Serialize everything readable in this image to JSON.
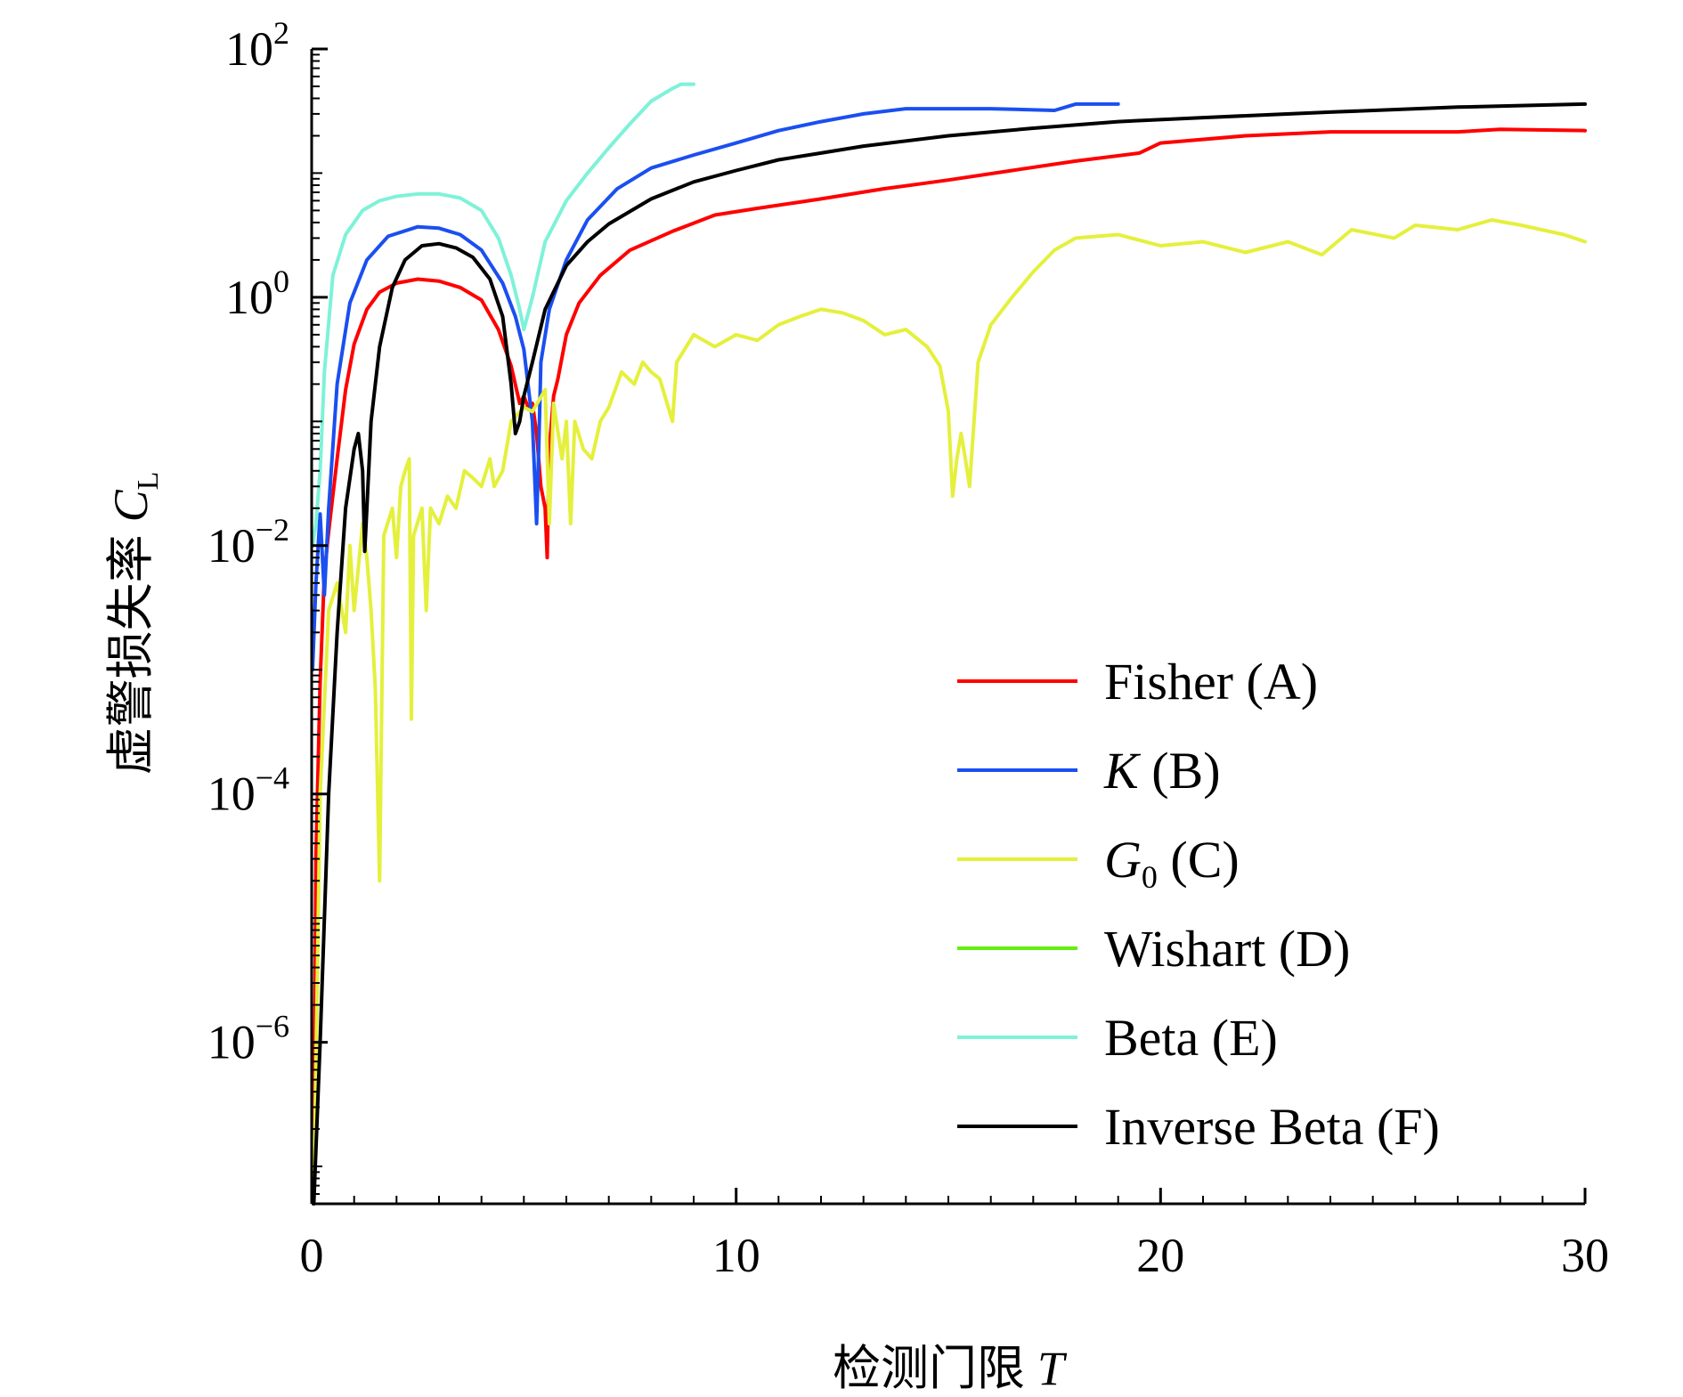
{
  "chart_data": {
    "type": "line",
    "xlabel": "检测门限",
    "xlabel_symbol": "T",
    "ylabel": "虚警损失率",
    "ylabel_symbol": "C",
    "ylabel_subscript": "L",
    "x_scale": "linear",
    "y_scale": "log",
    "xlim": [
      0,
      30
    ],
    "ylim": [
      5e-08,
      100
    ],
    "x_ticks": [
      0,
      10,
      20,
      30
    ],
    "x_tick_labels": [
      "0",
      "10",
      "20",
      "30"
    ],
    "y_ticks": [
      1e-06,
      0.0001,
      0.01,
      1,
      100
    ],
    "y_tick_labels": [
      {
        "base": "10",
        "exp": "−6"
      },
      {
        "base": "10",
        "exp": "−4"
      },
      {
        "base": "10",
        "exp": "−2"
      },
      {
        "base": "10",
        "exp": "0"
      },
      {
        "base": "10",
        "exp": "2"
      }
    ],
    "grid": false,
    "legend_position": "lower-right",
    "series": [
      {
        "name": "Fisher (A)",
        "name_style": "plain",
        "color": "#ff0000",
        "points": [
          [
            0.05,
            5e-08
          ],
          [
            0.1,
            3e-05
          ],
          [
            0.2,
            0.0008
          ],
          [
            0.3,
            0.006
          ],
          [
            0.4,
            0.013
          ],
          [
            0.6,
            0.05
          ],
          [
            0.8,
            0.18
          ],
          [
            1.0,
            0.42
          ],
          [
            1.3,
            0.8
          ],
          [
            1.6,
            1.1
          ],
          [
            2.0,
            1.3
          ],
          [
            2.5,
            1.4
          ],
          [
            3.0,
            1.35
          ],
          [
            3.5,
            1.2
          ],
          [
            4.0,
            0.95
          ],
          [
            4.4,
            0.55
          ],
          [
            4.7,
            0.28
          ],
          [
            4.9,
            0.14
          ],
          [
            5.0,
            0.16
          ],
          [
            5.1,
            0.13
          ],
          [
            5.2,
            0.14
          ],
          [
            5.3,
            0.08
          ],
          [
            5.4,
            0.03
          ],
          [
            5.5,
            0.02
          ],
          [
            5.55,
            0.008
          ],
          [
            5.6,
            0.06
          ],
          [
            5.7,
            0.16
          ],
          [
            5.8,
            0.22
          ],
          [
            6.0,
            0.5
          ],
          [
            6.3,
            0.9
          ],
          [
            6.8,
            1.5
          ],
          [
            7.5,
            2.4
          ],
          [
            8.5,
            3.4
          ],
          [
            9.5,
            4.6
          ],
          [
            10.5,
            5.2
          ],
          [
            12,
            6.2
          ],
          [
            13.5,
            7.5
          ],
          [
            15,
            8.8
          ],
          [
            16.5,
            10.5
          ],
          [
            18,
            12.5
          ],
          [
            19.5,
            14.5
          ],
          [
            20,
            17.5
          ],
          [
            22,
            20
          ],
          [
            24,
            21.5
          ],
          [
            27,
            21.5
          ],
          [
            28,
            22.5
          ],
          [
            30,
            22
          ]
        ]
      },
      {
        "name": "K (B)",
        "name_style": "italic-symbol",
        "color": "#1a4ff0",
        "points": [
          [
            0.02,
            0.001
          ],
          [
            0.1,
            0.005
          ],
          [
            0.2,
            0.018
          ],
          [
            0.3,
            0.004
          ],
          [
            0.4,
            0.02
          ],
          [
            0.6,
            0.2
          ],
          [
            0.9,
            0.9
          ],
          [
            1.3,
            2.0
          ],
          [
            1.8,
            3.1
          ],
          [
            2.5,
            3.7
          ],
          [
            3.0,
            3.6
          ],
          [
            3.5,
            3.2
          ],
          [
            4.0,
            2.4
          ],
          [
            4.5,
            1.3
          ],
          [
            4.8,
            0.7
          ],
          [
            5.0,
            0.38
          ],
          [
            5.2,
            0.1
          ],
          [
            5.3,
            0.015
          ],
          [
            5.35,
            0.06
          ],
          [
            5.4,
            0.3
          ],
          [
            5.6,
            0.8
          ],
          [
            6.0,
            2.0
          ],
          [
            6.5,
            4.2
          ],
          [
            7.2,
            7.5
          ],
          [
            8.0,
            11
          ],
          [
            9.0,
            14
          ],
          [
            10,
            17.5
          ],
          [
            11,
            22
          ],
          [
            12,
            26
          ],
          [
            13,
            30
          ],
          [
            14,
            33
          ],
          [
            16,
            33
          ],
          [
            17.5,
            32
          ],
          [
            18,
            36
          ],
          [
            19,
            36
          ]
        ]
      },
      {
        "name": "G0 (C)",
        "name_style": "italic-subscript",
        "color": "#e4f03c",
        "points": [
          [
            0.05,
            5e-08
          ],
          [
            0.2,
            0.0001
          ],
          [
            0.4,
            0.003
          ],
          [
            0.6,
            0.005
          ],
          [
            0.8,
            0.002
          ],
          [
            0.9,
            0.01
          ],
          [
            1.0,
            0.003
          ],
          [
            1.2,
            0.015
          ],
          [
            1.3,
            0.008
          ],
          [
            1.4,
            0.003
          ],
          [
            1.5,
            0.0007
          ],
          [
            1.6,
            2e-05
          ],
          [
            1.7,
            0.012
          ],
          [
            1.9,
            0.02
          ],
          [
            2.0,
            0.008
          ],
          [
            2.1,
            0.03
          ],
          [
            2.2,
            0.04
          ],
          [
            2.3,
            0.05
          ],
          [
            2.35,
            0.0004
          ],
          [
            2.4,
            0.012
          ],
          [
            2.6,
            0.02
          ],
          [
            2.7,
            0.003
          ],
          [
            2.8,
            0.02
          ],
          [
            3.0,
            0.015
          ],
          [
            3.2,
            0.025
          ],
          [
            3.4,
            0.02
          ],
          [
            3.6,
            0.04
          ],
          [
            3.8,
            0.035
          ],
          [
            4.0,
            0.03
          ],
          [
            4.2,
            0.05
          ],
          [
            4.3,
            0.03
          ],
          [
            4.5,
            0.04
          ],
          [
            4.7,
            0.1
          ],
          [
            5.0,
            0.13
          ],
          [
            5.2,
            0.12
          ],
          [
            5.5,
            0.18
          ],
          [
            5.6,
            0.015
          ],
          [
            5.7,
            0.14
          ],
          [
            5.9,
            0.05
          ],
          [
            6.0,
            0.1
          ],
          [
            6.1,
            0.015
          ],
          [
            6.2,
            0.1
          ],
          [
            6.4,
            0.06
          ],
          [
            6.6,
            0.05
          ],
          [
            6.8,
            0.1
          ],
          [
            7.0,
            0.13
          ],
          [
            7.3,
            0.25
          ],
          [
            7.6,
            0.2
          ],
          [
            7.8,
            0.3
          ],
          [
            8.0,
            0.25
          ],
          [
            8.2,
            0.22
          ],
          [
            8.5,
            0.1
          ],
          [
            8.6,
            0.3
          ],
          [
            9.0,
            0.5
          ],
          [
            9.5,
            0.4
          ],
          [
            10,
            0.5
          ],
          [
            10.5,
            0.45
          ],
          [
            11,
            0.6
          ],
          [
            11.5,
            0.7
          ],
          [
            12,
            0.8
          ],
          [
            12.5,
            0.75
          ],
          [
            13,
            0.65
          ],
          [
            13.5,
            0.5
          ],
          [
            14,
            0.55
          ],
          [
            14.5,
            0.4
          ],
          [
            14.8,
            0.28
          ],
          [
            15.0,
            0.12
          ],
          [
            15.1,
            0.025
          ],
          [
            15.2,
            0.05
          ],
          [
            15.3,
            0.08
          ],
          [
            15.4,
            0.05
          ],
          [
            15.5,
            0.03
          ],
          [
            15.7,
            0.3
          ],
          [
            16,
            0.6
          ],
          [
            16.5,
            1.0
          ],
          [
            17,
            1.6
          ],
          [
            17.5,
            2.4
          ],
          [
            18,
            3.0
          ],
          [
            19,
            3.2
          ],
          [
            20,
            2.6
          ],
          [
            21,
            2.8
          ],
          [
            22,
            2.3
          ],
          [
            23,
            2.8
          ],
          [
            23.8,
            2.2
          ],
          [
            24.5,
            3.5
          ],
          [
            25.5,
            3.0
          ],
          [
            26,
            3.8
          ],
          [
            27,
            3.5
          ],
          [
            27.8,
            4.2
          ],
          [
            28.5,
            3.8
          ],
          [
            29.5,
            3.2
          ],
          [
            30,
            2.8
          ]
        ]
      },
      {
        "name": "Wishart (D)",
        "name_style": "plain",
        "color": "#63f010",
        "points": []
      },
      {
        "name": "Beta (E)",
        "name_style": "plain",
        "color": "#7ef2d8",
        "points": [
          [
            0.02,
            0.01
          ],
          [
            0.1,
            0.015
          ],
          [
            0.2,
            0.04
          ],
          [
            0.3,
            0.25
          ],
          [
            0.5,
            1.5
          ],
          [
            0.8,
            3.2
          ],
          [
            1.2,
            5.0
          ],
          [
            1.6,
            6.0
          ],
          [
            2.0,
            6.5
          ],
          [
            2.5,
            6.8
          ],
          [
            3.0,
            6.8
          ],
          [
            3.5,
            6.3
          ],
          [
            4.0,
            5.0
          ],
          [
            4.4,
            3.0
          ],
          [
            4.7,
            1.5
          ],
          [
            4.9,
            0.8
          ],
          [
            5.0,
            0.55
          ],
          [
            5.2,
            1.0
          ],
          [
            5.5,
            2.8
          ],
          [
            6.0,
            6.0
          ],
          [
            6.5,
            10
          ],
          [
            7.0,
            16
          ],
          [
            7.5,
            25
          ],
          [
            8.0,
            38
          ],
          [
            8.5,
            48
          ],
          [
            8.7,
            52
          ],
          [
            9.0,
            52
          ]
        ]
      },
      {
        "name": "Inverse Beta (F)",
        "name_style": "plain",
        "color": "#000000",
        "points": [
          [
            0.05,
            5e-08
          ],
          [
            0.2,
            1e-06
          ],
          [
            0.4,
            0.0001
          ],
          [
            0.6,
            0.002
          ],
          [
            0.8,
            0.02
          ],
          [
            1.0,
            0.06
          ],
          [
            1.1,
            0.08
          ],
          [
            1.2,
            0.04
          ],
          [
            1.25,
            0.009
          ],
          [
            1.3,
            0.02
          ],
          [
            1.4,
            0.1
          ],
          [
            1.6,
            0.4
          ],
          [
            1.9,
            1.2
          ],
          [
            2.2,
            2.0
          ],
          [
            2.6,
            2.6
          ],
          [
            3.0,
            2.7
          ],
          [
            3.4,
            2.5
          ],
          [
            3.8,
            2.1
          ],
          [
            4.2,
            1.4
          ],
          [
            4.5,
            0.7
          ],
          [
            4.7,
            0.2
          ],
          [
            4.8,
            0.08
          ],
          [
            4.9,
            0.1
          ],
          [
            5.0,
            0.16
          ],
          [
            5.2,
            0.3
          ],
          [
            5.5,
            0.8
          ],
          [
            6.0,
            1.8
          ],
          [
            6.5,
            2.8
          ],
          [
            7.0,
            3.9
          ],
          [
            8.0,
            6.2
          ],
          [
            9.0,
            8.5
          ],
          [
            10,
            10.5
          ],
          [
            11,
            12.8
          ],
          [
            12,
            14.5
          ],
          [
            13,
            16.5
          ],
          [
            15,
            20
          ],
          [
            17,
            23
          ],
          [
            19,
            26
          ],
          [
            21,
            28
          ],
          [
            24,
            31
          ],
          [
            27,
            34
          ],
          [
            30,
            36
          ]
        ]
      }
    ]
  }
}
